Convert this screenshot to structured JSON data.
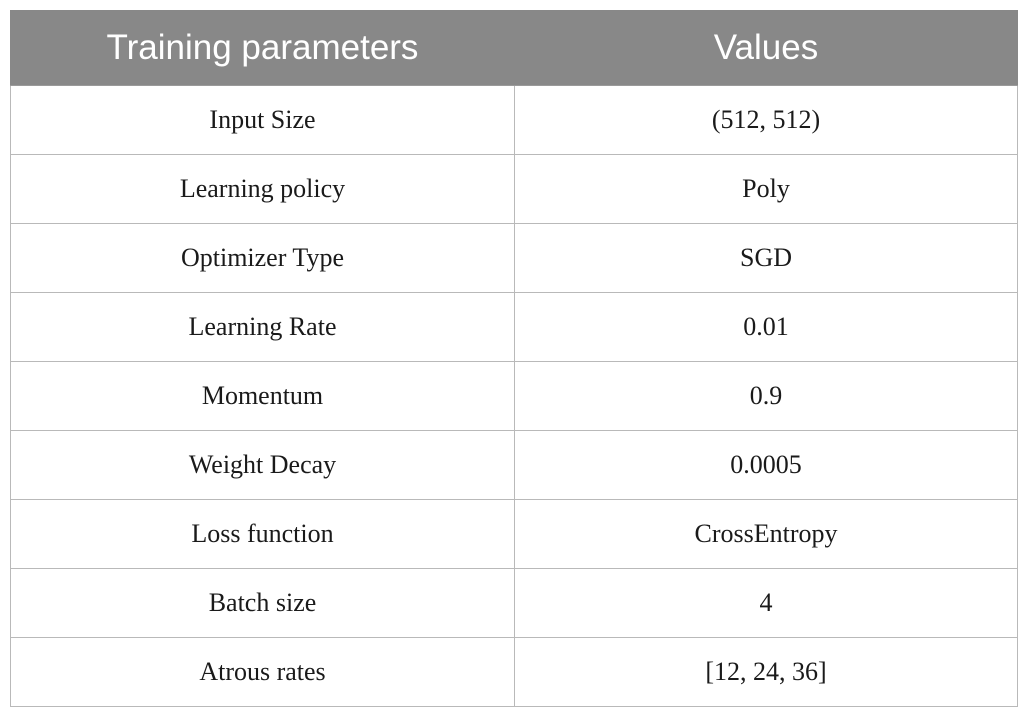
{
  "table": {
    "headers": [
      "Training parameters",
      "Values"
    ],
    "rows": [
      [
        "Input Size",
        "(512, 512)"
      ],
      [
        "Learning policy",
        "Poly"
      ],
      [
        "Optimizer Type",
        "SGD"
      ],
      [
        "Learning Rate",
        "0.01"
      ],
      [
        "Momentum",
        "0.9"
      ],
      [
        "Weight Decay",
        "0.0005"
      ],
      [
        "Loss function",
        "CrossEntropy"
      ],
      [
        "Batch size",
        "4"
      ],
      [
        "Atrous rates",
        "[12, 24, 36]"
      ]
    ]
  },
  "colors": {
    "header_bg": "#888888",
    "header_text": "#ffffff",
    "border": "#b9b9b9",
    "body_text": "#1a1a1a"
  }
}
